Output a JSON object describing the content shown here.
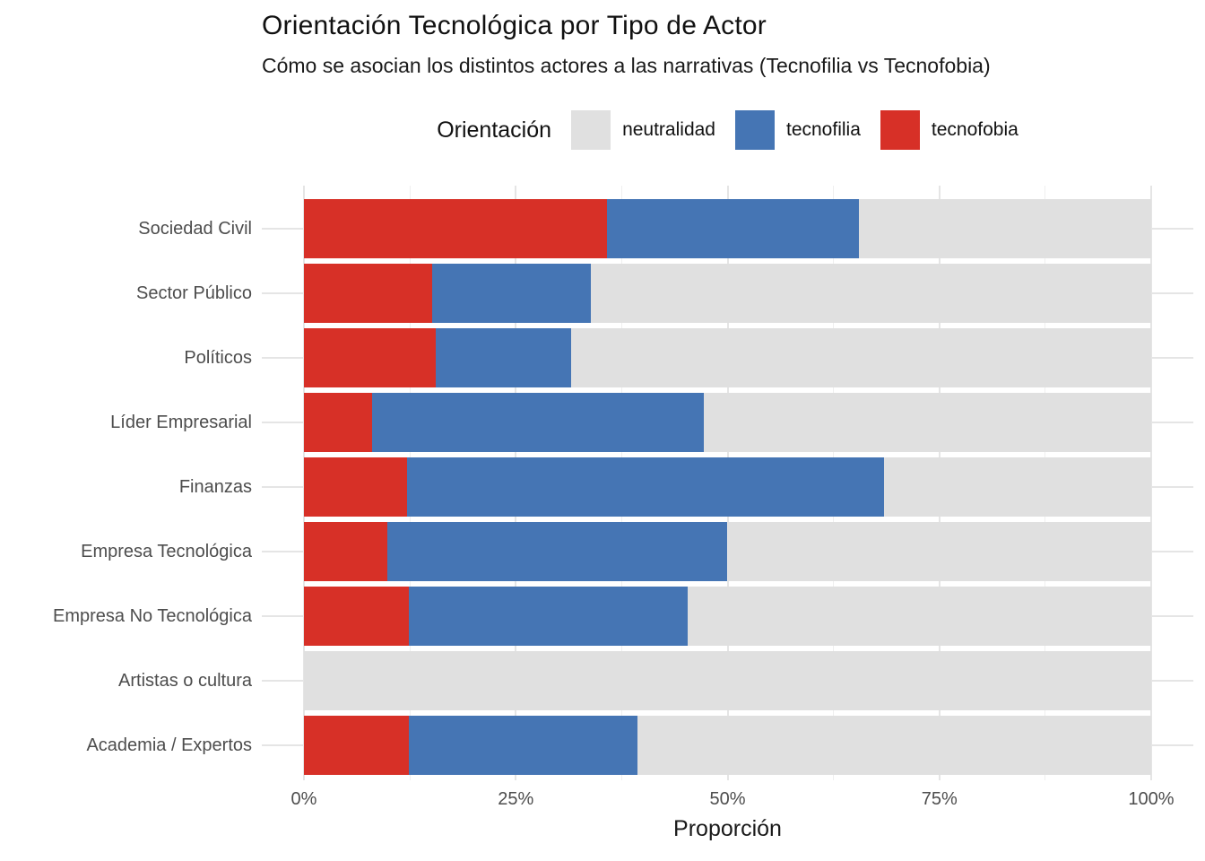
{
  "header": {
    "title": "Orientación Tecnológica por Tipo de Actor",
    "subtitle": "Cómo se asocian los distintos actores a las narrativas (Tecnofilia vs Tecnofobia)"
  },
  "legend": {
    "title": "Orientación",
    "items": [
      {
        "label": "neutralidad",
        "color": "#E0E0E0"
      },
      {
        "label": "tecnofilia",
        "color": "#4575B4"
      },
      {
        "label": "tecnofobia",
        "color": "#D73027"
      }
    ]
  },
  "chart_data": {
    "type": "bar",
    "orientation": "horizontal",
    "stacked": true,
    "title": "Orientación Tecnológica por Tipo de Actor",
    "subtitle": "Cómo se asocian los distintos actores a las narrativas (Tecnofilia vs Tecnofobia)",
    "xlabel": "Proporción",
    "ylabel": "",
    "xlim": [
      0,
      100
    ],
    "x_tick_values": [
      0,
      25,
      50,
      75,
      100
    ],
    "x_tick_labels": [
      "0%",
      "25%",
      "50%",
      "75%",
      "100%"
    ],
    "x_minor_tick_values": [
      12.5,
      37.5,
      62.5,
      87.5
    ],
    "grid": true,
    "legend_position": "top",
    "categories": [
      "Sociedad Civil",
      "Sector Público",
      "Políticos",
      "Líder Empresarial",
      "Finanzas",
      "Empresa Tecnológica",
      "Empresa No Tecnológica",
      "Artistas o cultura",
      "Academia / Expertos"
    ],
    "series": [
      {
        "name": "tecnofobia",
        "color": "#D73027",
        "values": [
          35.8,
          15.1,
          15.6,
          8.0,
          12.2,
          9.8,
          12.4,
          0.0,
          12.4
        ]
      },
      {
        "name": "tecnofilia",
        "color": "#4575B4",
        "values": [
          29.7,
          18.8,
          15.9,
          39.2,
          56.3,
          40.2,
          32.9,
          0.0,
          27.0
        ]
      },
      {
        "name": "neutralidad",
        "color": "#E0E0E0",
        "values": [
          34.5,
          66.1,
          68.5,
          52.8,
          31.5,
          50.0,
          54.7,
          100.0,
          60.6
        ]
      }
    ],
    "colors": {
      "panel_background": "#FFFFFF",
      "grid_major": "#E5E5E5",
      "grid_minor": "#EFEFEF",
      "axis_text": "#4D4D4D",
      "title_text": "#111111"
    }
  }
}
